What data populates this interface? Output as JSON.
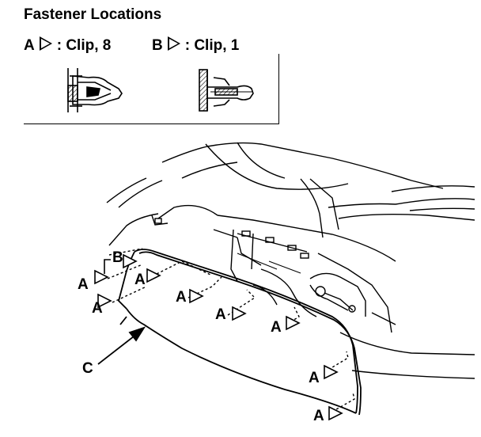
{
  "title": "Fastener Locations",
  "legend": [
    {
      "letter": "A",
      "desc": ": Clip, 8"
    },
    {
      "letter": "B",
      "desc": ": Clip, 1"
    }
  ],
  "callouts": {
    "a": "A",
    "b": "B",
    "c": "C"
  }
}
